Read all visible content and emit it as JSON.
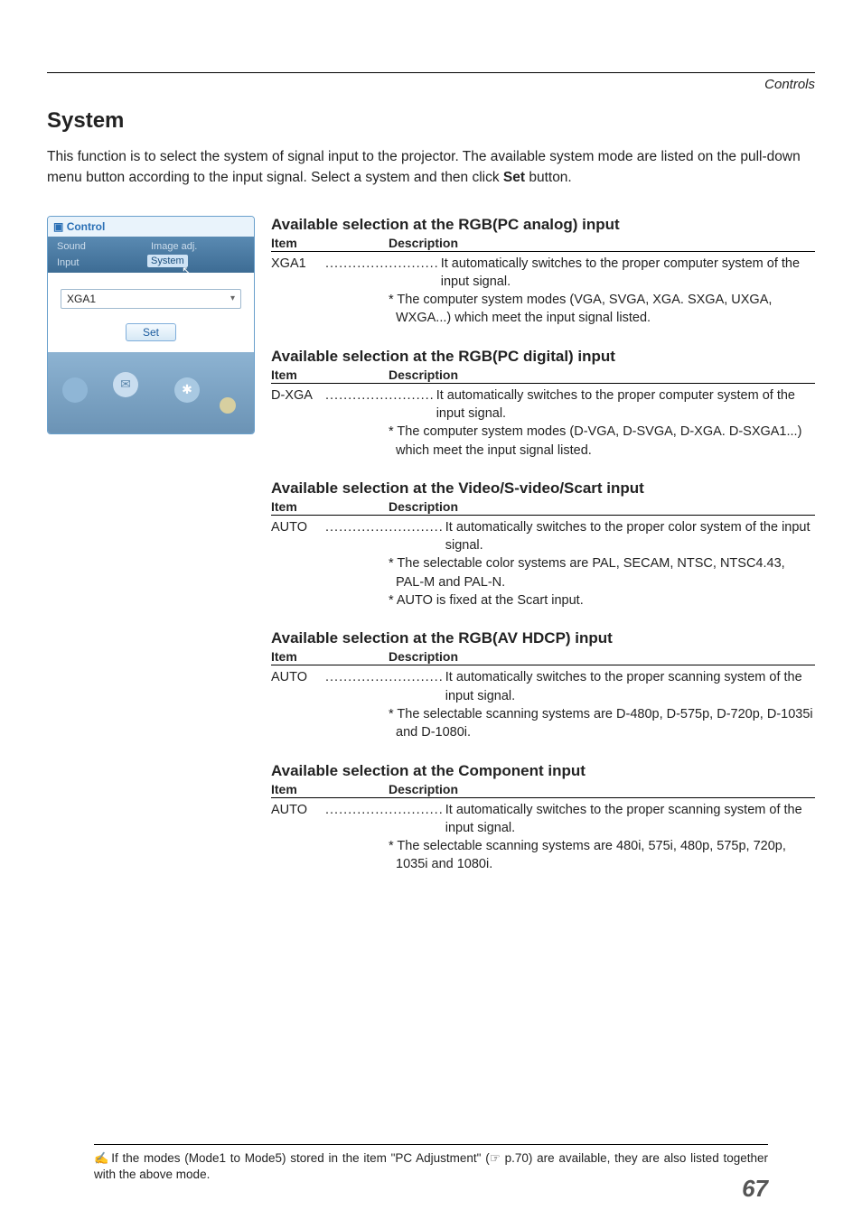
{
  "header": {
    "corner": "Controls"
  },
  "title": "System",
  "intro": {
    "text_before": "This function is to select the system of signal input to the projector. The available system mode are listed on the pull-down menu button according to the input signal. Select a system and then click ",
    "bold": "Set",
    "text_after": " button."
  },
  "panel": {
    "hdr_icon": "▣",
    "hdr": "Control",
    "tabs": {
      "sound": "Sound",
      "image": "Image adj.",
      "input": "Input",
      "system": "System"
    },
    "cursor_glyph": "↖",
    "select_value": "XGA1",
    "chev": "▾",
    "set": "Set",
    "footer_icons": {
      "mail": "✉",
      "globe": "✱"
    }
  },
  "sections": [
    {
      "title": "Available selection at the RGB(PC analog) input",
      "head": {
        "c1": "Item",
        "c2": "Description"
      },
      "item": "XGA1",
      "dots": ".........................",
      "desc": "It automatically switches to the proper computer system of the input signal.",
      "notes": [
        "The computer system modes (VGA, SVGA, XGA. SXGA, UXGA, WXGA...) which meet the input signal listed."
      ]
    },
    {
      "title": "Available selection at the RGB(PC digital) input",
      "head": {
        "c1": "Item",
        "c2": "Description"
      },
      "item": "D-XGA",
      "dots": "........................",
      "desc": "It automatically switches to the proper computer system of the input signal.",
      "notes": [
        "The computer system modes (D-VGA, D-SVGA, D-XGA. D-SXGA1...) which meet the input signal listed."
      ]
    },
    {
      "title": "Available selection at the Video/S-video/Scart input",
      "head": {
        "c1": "Item",
        "c2": "Description"
      },
      "item": "AUTO",
      "dots": "..........................",
      "desc": "It automatically switches to the proper color system of the input signal.",
      "notes": [
        "The selectable color systems are PAL, SECAM, NTSC, NTSC4.43, PAL-M and PAL-N.",
        "AUTO is fixed at the Scart input."
      ]
    },
    {
      "title": "Available selection at the RGB(AV HDCP) input",
      "head": {
        "c1": "Item",
        "c2": "Description"
      },
      "item": "AUTO",
      "dots": "..........................",
      "desc": "It automatically switches to the proper scanning system of the input signal.",
      "notes": [
        "The selectable scanning systems are D-480p, D-575p, D-720p, D-1035i and D-1080i."
      ]
    },
    {
      "title": "Available selection at the Component input",
      "head": {
        "c1": "Item",
        "c2": "Description"
      },
      "item": "AUTO",
      "dots": "..........................",
      "desc": "It automatically switches to the proper scanning system of the input signal.",
      "notes": [
        "The selectable scanning systems are 480i, 575i, 480p, 575p, 720p, 1035i and 1080i."
      ]
    }
  ],
  "footnote": {
    "hand": "✍",
    "text": "If the modes (Mode1 to Mode5) stored in the item \"PC Adjustment\" (☞ p.70) are available, they are also listed together with the above mode."
  },
  "pagenum": "67"
}
